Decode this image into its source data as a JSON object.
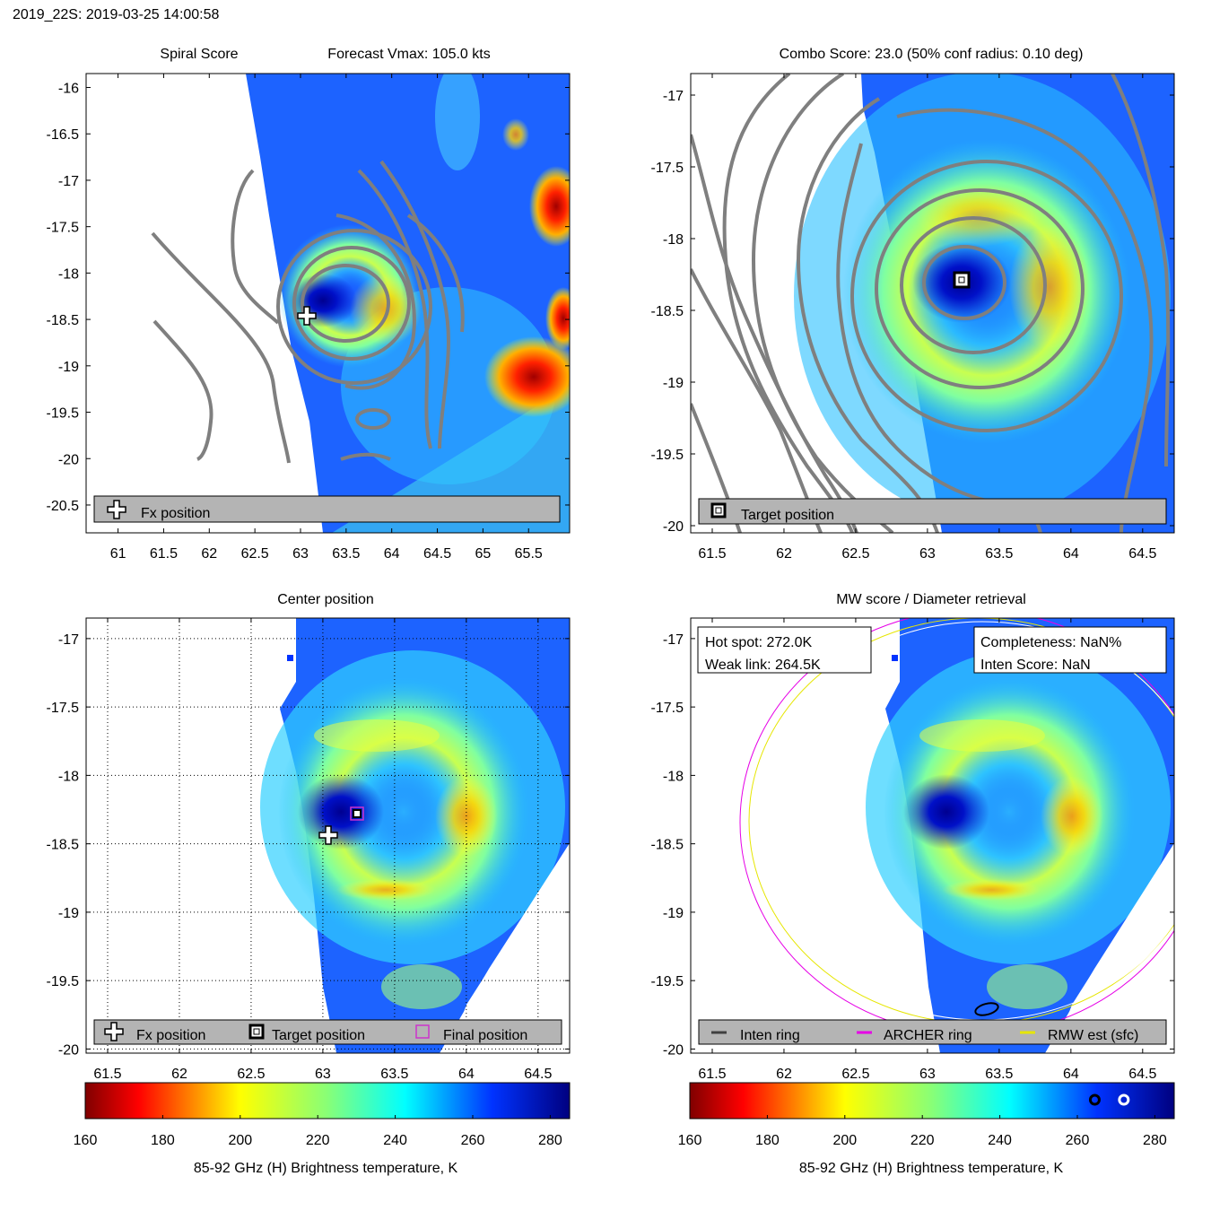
{
  "page_title": "2019_22S: 2019-03-25 14:00:58",
  "colors": {
    "axis_frame": "#000000",
    "contour": "#7f7f7f",
    "legend_bg": "#b4b4b4",
    "archer_ring": "#e600e6",
    "rmw_ring": "#e6e600",
    "inten_ring": "#404040",
    "final_marker": "#cc33cc"
  },
  "colorbar": {
    "colormap": "jet-reversed (dark red at low, dark blue at high)",
    "ticks": [
      "160",
      "180",
      "200",
      "220",
      "240",
      "260",
      "280"
    ],
    "range": [
      160,
      285
    ],
    "label": "85-92 GHz (H) Brightness temperature, K",
    "markers": [
      {
        "name": "weak-link-marker",
        "value": 264.5,
        "style": "black ring"
      },
      {
        "name": "hot-spot-marker",
        "value": 272.0,
        "style": "white ring"
      }
    ]
  },
  "panels": {
    "spiral": {
      "title_left": "Spiral Score",
      "title_right": "Forecast Vmax: 105.0 kts",
      "xticks": [
        "61",
        "61.5",
        "62",
        "62.5",
        "63",
        "63.5",
        "64",
        "64.5",
        "65",
        "65.5"
      ],
      "yticks": [
        "-16",
        "-16.5",
        "-17",
        "-17.5",
        "-18",
        "-18.5",
        "-19",
        "-19.5",
        "-20",
        "-20.5"
      ],
      "legend": {
        "fx": "Fx position"
      }
    },
    "combo": {
      "title": "Combo Score: 23.0  (50% conf radius: 0.10 deg)",
      "xticks": [
        "61.5",
        "62",
        "62.5",
        "63",
        "63.5",
        "64",
        "64.5"
      ],
      "yticks": [
        "-17",
        "-17.5",
        "-18",
        "-18.5",
        "-19",
        "-19.5",
        "-20"
      ],
      "legend": {
        "target": "Target position"
      }
    },
    "center": {
      "title": "Center position",
      "xticks": [
        "61.5",
        "62",
        "62.5",
        "63",
        "63.5",
        "64",
        "64.5"
      ],
      "yticks": [
        "-17",
        "-17.5",
        "-18",
        "-18.5",
        "-19",
        "-19.5",
        "-20"
      ],
      "legend": {
        "fx": "Fx position",
        "target": "Target position",
        "final": "Final position"
      }
    },
    "mw": {
      "title": "MW score / Diameter retrieval",
      "xticks": [
        "61.5",
        "62",
        "62.5",
        "63",
        "63.5",
        "64",
        "64.5"
      ],
      "yticks": [
        "-17",
        "-17.5",
        "-18",
        "-18.5",
        "-19",
        "-19.5",
        "-20"
      ],
      "info_left": {
        "hot_spot": "Hot spot: 272.0K",
        "weak_link": "Weak link: 264.5K"
      },
      "info_right": {
        "completeness": "Completeness: NaN%",
        "inten_score": "Inten Score: NaN"
      },
      "legend": {
        "inten": "Inten ring",
        "archer": "ARCHER ring",
        "rmw": "RMW est (sfc)"
      }
    }
  },
  "chart_data": [
    {
      "type": "heatmap",
      "name": "Spiral Score",
      "xlim": [
        60.65,
        65.95
      ],
      "ylim": [
        -20.8,
        -15.85
      ],
      "positions": {
        "fx": {
          "lon": 63.0,
          "lat": -18.43
        }
      },
      "cyclone_center": {
        "lon": 63.2,
        "lat": -18.25
      }
    },
    {
      "type": "heatmap",
      "name": "Combo Score",
      "xlim": [
        61.35,
        64.72
      ],
      "ylim": [
        -20.05,
        -16.85
      ],
      "combo_score": 23.0,
      "conf_radius_50pct_deg": 0.1,
      "positions": {
        "target": {
          "lon": 63.25,
          "lat": -18.28
        }
      }
    },
    {
      "type": "heatmap",
      "name": "Center position",
      "xlim": [
        61.35,
        64.72
      ],
      "ylim": [
        -20.03,
        -16.85
      ],
      "positions": {
        "fx": {
          "lon": 63.03,
          "lat": -18.43
        },
        "target": {
          "lon": 63.25,
          "lat": -18.28
        },
        "final": {
          "lon": 63.25,
          "lat": -18.28
        }
      }
    },
    {
      "type": "heatmap",
      "name": "MW score / Diameter retrieval",
      "xlim": [
        61.35,
        64.72
      ],
      "ylim": [
        -20.03,
        -16.85
      ],
      "hot_spot_K": 272.0,
      "weak_link_K": 264.5,
      "completeness": "NaN%",
      "inten_score": "NaN"
    }
  ]
}
